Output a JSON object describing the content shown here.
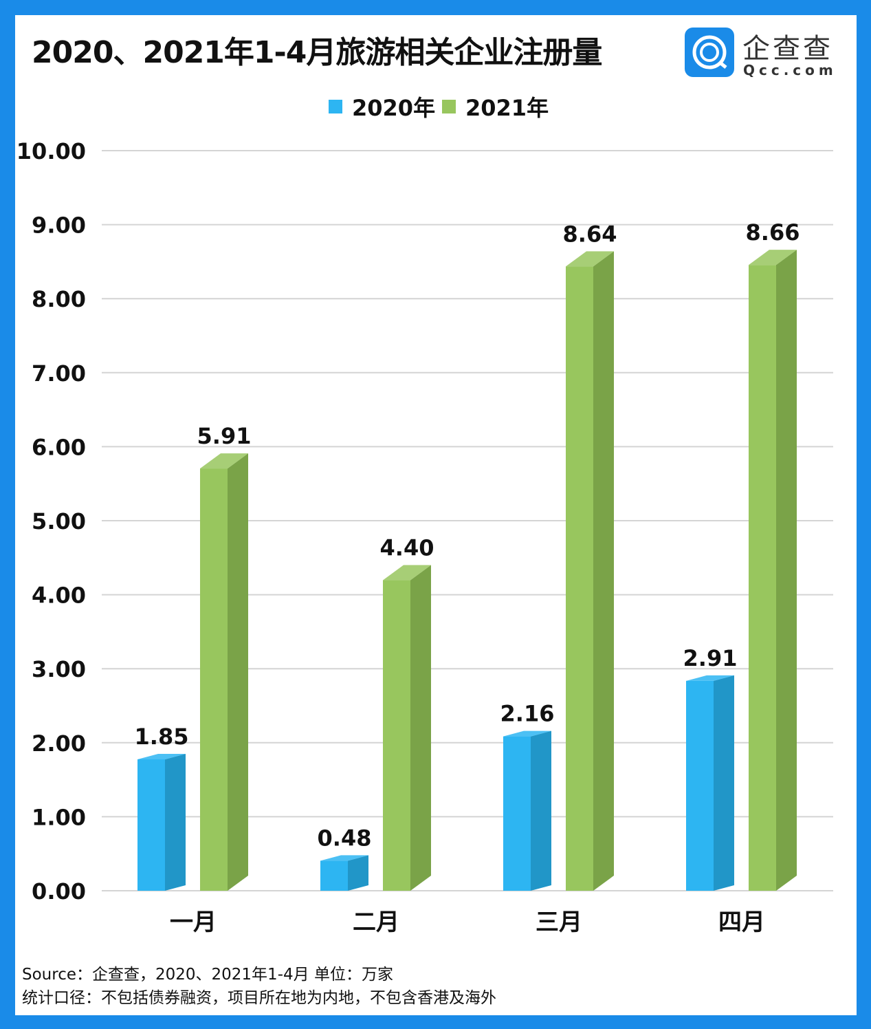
{
  "title": "2020、2021年1-4月旅游相关企业注册量",
  "brand": {
    "name": "企查查",
    "domain": "Qcc.com"
  },
  "footer": {
    "line1": "Source：企查查，2020、2021年1-4月 单位：万家",
    "line2": "统计口径：不包括债券融资，项目所在地为内地，不包含香港及海外"
  },
  "chart_data": {
    "type": "bar",
    "categories": [
      "一月",
      "二月",
      "三月",
      "四月"
    ],
    "series": [
      {
        "name": "2020年",
        "values": [
          1.85,
          0.48,
          2.16,
          2.91
        ],
        "color": "#2db5f2",
        "side": "#2196c8"
      },
      {
        "name": "2021年",
        "values": [
          5.91,
          4.4,
          8.64,
          8.66
        ],
        "color": "#98c65e",
        "side": "#7aa348"
      }
    ],
    "ylim": [
      0,
      10
    ],
    "yticks": [
      "0.00",
      "1.00",
      "2.00",
      "3.00",
      "4.00",
      "5.00",
      "6.00",
      "7.00",
      "8.00",
      "9.00",
      "10.00"
    ],
    "grid": true,
    "legend": "top-center"
  }
}
